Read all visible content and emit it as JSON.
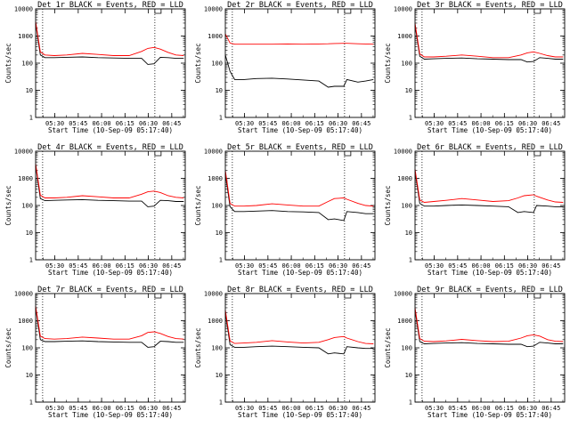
{
  "chart_data": {
    "type": "line",
    "common": {
      "xlabel": "Start Time (10-Sep-09 05:17:40)",
      "ylabel": "Counts/sec",
      "x_tick_labels": [
        "05:30",
        "05:45",
        "06:00",
        "06:15",
        "06:30",
        "06:45"
      ],
      "x_tick_minutes": [
        12.33,
        27.33,
        42.33,
        57.33,
        72.33,
        87.33
      ],
      "x_range_minutes": [
        0,
        96
      ],
      "y_scale": "log",
      "ylim": [
        1,
        10000
      ],
      "y_tick_labels": [
        "1",
        "10",
        "100",
        "1000",
        "10000"
      ],
      "y_tick_values": [
        1,
        10,
        100,
        1000,
        10000
      ],
      "dotted_vlines_minutes": [
        4.5,
        76.5
      ],
      "series_colors": {
        "events": "#000000",
        "lld": "#ff0000"
      }
    },
    "panels": [
      {
        "title": "Det 1r BLACK = Events, RED = LLD",
        "x": [
          0,
          3,
          6,
          12,
          20,
          30,
          40,
          50,
          60,
          68,
          72,
          76,
          80,
          85,
          90,
          95
        ],
        "events": [
          3000,
          200,
          160,
          160,
          165,
          170,
          160,
          155,
          150,
          150,
          90,
          95,
          165,
          160,
          150,
          150
        ],
        "lld": [
          3500,
          260,
          200,
          190,
          200,
          230,
          210,
          190,
          190,
          270,
          350,
          380,
          330,
          250,
          200,
          190
        ]
      },
      {
        "title": "Det 2r BLACK = Events, RED = LLD",
        "x": [
          0,
          3,
          6,
          12,
          20,
          30,
          40,
          50,
          60,
          66,
          70,
          76,
          78,
          85,
          90,
          95
        ],
        "events": [
          200,
          50,
          25,
          25,
          27,
          28,
          26,
          24,
          22,
          13,
          14,
          14,
          25,
          20,
          22,
          25
        ],
        "lld": [
          1200,
          550,
          500,
          500,
          500,
          500,
          510,
          500,
          510,
          520,
          530,
          540,
          540,
          520,
          510,
          500
        ]
      },
      {
        "title": "Det 3r BLACK = Events, RED = LLD",
        "x": [
          0,
          3,
          6,
          12,
          20,
          30,
          40,
          50,
          60,
          68,
          72,
          76,
          80,
          85,
          90,
          95
        ],
        "events": [
          2500,
          180,
          140,
          145,
          150,
          155,
          145,
          140,
          135,
          135,
          110,
          115,
          160,
          150,
          140,
          140
        ],
        "lld": [
          3000,
          220,
          170,
          170,
          180,
          200,
          180,
          160,
          160,
          200,
          240,
          260,
          230,
          190,
          170,
          170
        ]
      },
      {
        "title": "Det 4r BLACK = Events, RED = LLD",
        "x": [
          0,
          3,
          6,
          12,
          20,
          30,
          40,
          50,
          60,
          68,
          72,
          76,
          80,
          85,
          90,
          95
        ],
        "events": [
          3000,
          180,
          150,
          155,
          160,
          165,
          155,
          150,
          145,
          145,
          90,
          95,
          155,
          150,
          140,
          140
        ],
        "lld": [
          3500,
          240,
          190,
          190,
          200,
          230,
          210,
          190,
          190,
          260,
          320,
          340,
          300,
          230,
          200,
          190
        ]
      },
      {
        "title": "Det 5r BLACK = Events, RED = LLD",
        "x": [
          0,
          3,
          6,
          12,
          20,
          30,
          40,
          50,
          60,
          66,
          70,
          76,
          78,
          85,
          90,
          95
        ],
        "events": [
          1500,
          90,
          60,
          60,
          62,
          65,
          60,
          58,
          55,
          30,
          32,
          28,
          60,
          55,
          50,
          50
        ],
        "lld": [
          2000,
          120,
          95,
          95,
          100,
          115,
          105,
          95,
          95,
          140,
          180,
          190,
          170,
          120,
          100,
          95
        ]
      },
      {
        "title": "Det 6r BLACK = Events, RED = LLD",
        "x": [
          0,
          3,
          6,
          12,
          20,
          30,
          40,
          50,
          60,
          66,
          70,
          76,
          78,
          85,
          90,
          95
        ],
        "events": [
          1800,
          120,
          95,
          95,
          100,
          105,
          100,
          95,
          90,
          55,
          60,
          55,
          100,
          95,
          90,
          90
        ],
        "lld": [
          2200,
          160,
          130,
          140,
          155,
          180,
          160,
          140,
          150,
          190,
          230,
          250,
          220,
          160,
          135,
          130
        ]
      },
      {
        "title": "Det 7r BLACK = Events, RED = LLD",
        "x": [
          0,
          3,
          6,
          12,
          20,
          30,
          40,
          50,
          60,
          68,
          72,
          76,
          80,
          85,
          90,
          95
        ],
        "events": [
          3000,
          200,
          170,
          170,
          175,
          180,
          170,
          165,
          160,
          160,
          105,
          110,
          175,
          170,
          160,
          160
        ],
        "lld": [
          3500,
          270,
          220,
          210,
          220,
          250,
          230,
          210,
          210,
          280,
          370,
          390,
          340,
          260,
          220,
          210
        ]
      },
      {
        "title": "Det 8r BLACK = Events, RED = LLD",
        "x": [
          0,
          3,
          6,
          12,
          20,
          30,
          40,
          50,
          60,
          66,
          70,
          76,
          78,
          85,
          90,
          95
        ],
        "events": [
          2000,
          130,
          105,
          105,
          110,
          115,
          110,
          105,
          100,
          60,
          65,
          60,
          110,
          100,
          95,
          95
        ],
        "lld": [
          2500,
          180,
          145,
          150,
          160,
          185,
          165,
          150,
          160,
          200,
          240,
          260,
          230,
          170,
          145,
          140
        ]
      },
      {
        "title": "Det 9r BLACK = Events, RED = LLD",
        "x": [
          0,
          3,
          6,
          12,
          20,
          30,
          40,
          50,
          60,
          68,
          72,
          76,
          80,
          85,
          90,
          95
        ],
        "events": [
          2500,
          170,
          140,
          145,
          150,
          155,
          145,
          140,
          135,
          135,
          110,
          115,
          160,
          150,
          140,
          140
        ],
        "lld": [
          3000,
          220,
          175,
          170,
          180,
          205,
          185,
          170,
          175,
          230,
          280,
          300,
          270,
          200,
          175,
          170
        ]
      }
    ]
  }
}
